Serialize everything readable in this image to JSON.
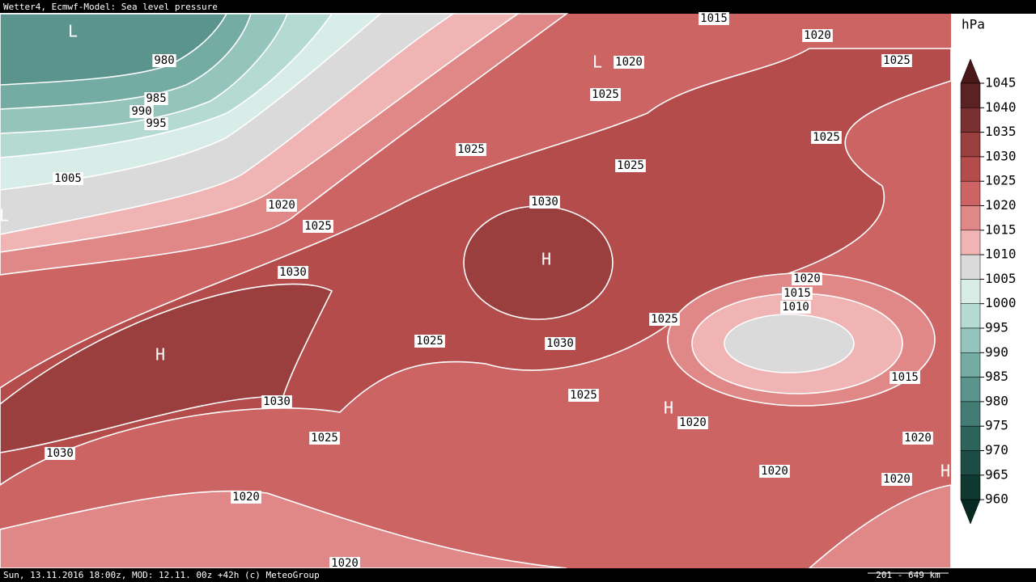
{
  "header": {
    "title": "Wetter4, Ecmwf-Model: Sea level pressure"
  },
  "footer": {
    "text": "Sun, 13.11.2016 18:00z, MOD: 12.11. 00z +42h (c) MeteoGroup",
    "scale": "201 - 649 km"
  },
  "legend": {
    "unit": "hPa",
    "levels": [
      1045,
      1040,
      1035,
      1030,
      1025,
      1020,
      1015,
      1010,
      1005,
      1000,
      995,
      990,
      985,
      980,
      975,
      970,
      965,
      960
    ],
    "colors": [
      "#4a1818",
      "#5a2222",
      "#7a3030",
      "#9a3e3e",
      "#b44c4c",
      "#cc6464",
      "#e08888",
      "#f0b4b4",
      "#dadada",
      "#d8ece8",
      "#b4dad2",
      "#94c4bc",
      "#74aca4",
      "#5a948c",
      "#427c74",
      "#2c645c",
      "#1c4c44",
      "#0e3830",
      "#062a22"
    ]
  },
  "isobar_labels": [
    "1015",
    "1020",
    "1020",
    "1025",
    "980",
    "985",
    "990",
    "995",
    "1025",
    "1025",
    "1025",
    "1025",
    "1005",
    "1020",
    "1025",
    "1030",
    "1030",
    "1020",
    "1015",
    "1010",
    "1025",
    "1025",
    "1030",
    "1015",
    "1030",
    "1025",
    "1020",
    "1025",
    "1030",
    "1020",
    "1020",
    "1020",
    "1020",
    "1020"
  ],
  "pressure_centers": [
    "L",
    "L",
    "L",
    "H",
    "H",
    "H",
    "H"
  ]
}
